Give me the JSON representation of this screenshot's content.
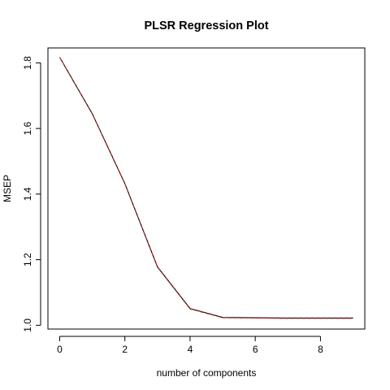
{
  "chart_data": {
    "type": "line",
    "title": "PLSR Regression Plot",
    "xlabel": "number of components",
    "ylabel": "MSEP",
    "xlim": [
      -0.36,
      9.36
    ],
    "ylim": [
      0.9885,
      1.8455
    ],
    "x_ticks": [
      0,
      2,
      4,
      6,
      8
    ],
    "y_ticks": [
      1.0,
      1.2,
      1.4,
      1.6,
      1.8
    ],
    "x_tick_labels": [
      "0",
      "2",
      "4",
      "6",
      "8"
    ],
    "y_tick_labels": [
      "1.0",
      "1.2",
      "1.4",
      "1.6",
      "1.8"
    ],
    "grid": false,
    "legend": "none",
    "series": [
      {
        "color": "#000000",
        "style": "solid",
        "x": [
          0,
          1,
          2,
          3,
          4,
          5,
          6,
          7,
          8,
          9
        ],
        "values": [
          1.817,
          1.645,
          1.432,
          1.178,
          1.051,
          1.024,
          1.023,
          1.022,
          1.022,
          1.022
        ]
      },
      {
        "color": "#b22222",
        "style": "dashed",
        "x": [
          0,
          1,
          2,
          3,
          4,
          5,
          6,
          7,
          8,
          9
        ],
        "values": [
          1.817,
          1.644,
          1.431,
          1.177,
          1.05,
          1.023,
          1.022,
          1.021,
          1.021,
          1.021
        ]
      }
    ]
  }
}
